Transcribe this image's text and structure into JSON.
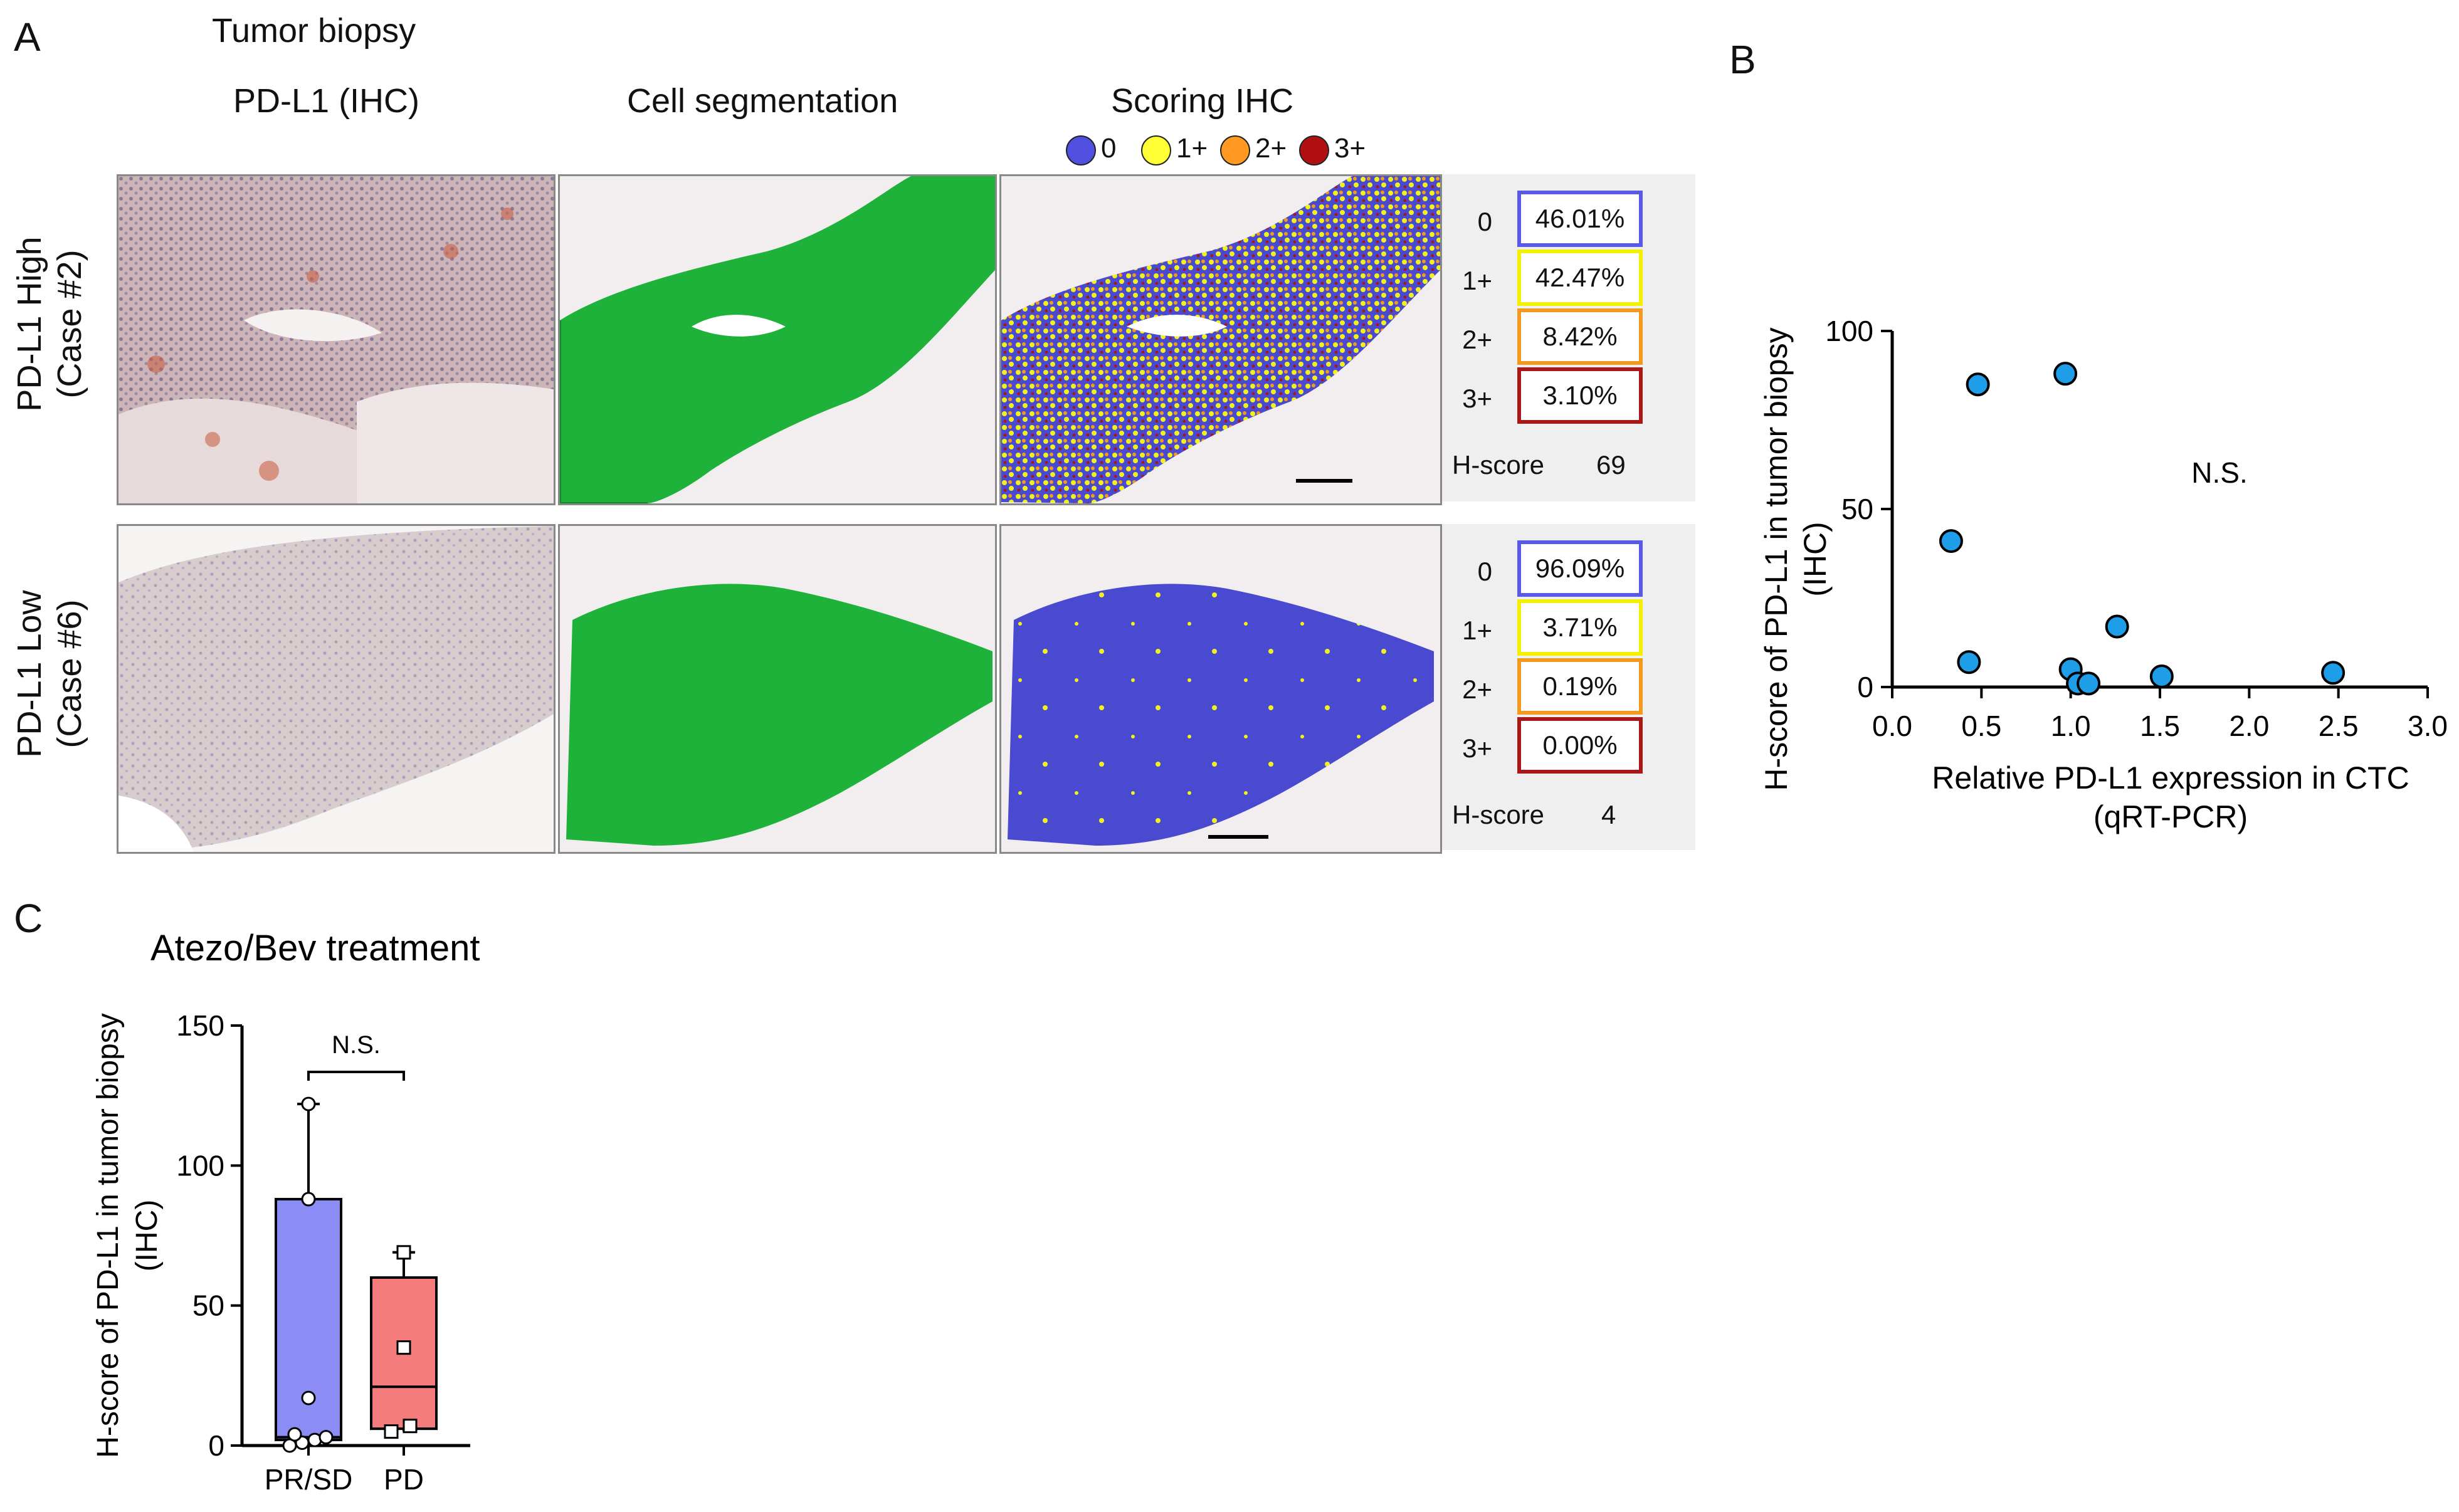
{
  "panels": {
    "a": "A",
    "b": "B",
    "c": "C"
  },
  "panel_a": {
    "title": "Tumor biopsy",
    "col_headers": [
      "PD-L1 (IHC)",
      "Cell segmentation",
      "Scoring IHC"
    ],
    "legend": [
      {
        "label": "0",
        "color": "#5050e0"
      },
      {
        "label": "1+",
        "color": "#ffff33"
      },
      {
        "label": "2+",
        "color": "#ff9922"
      },
      {
        "label": "3+",
        "color": "#b01010"
      }
    ],
    "rows": [
      {
        "label_line1": "PD-L1 High",
        "label_line2": "(Case #2)",
        "scores": [
          {
            "label": "0",
            "value": "46.01%",
            "border": "#5a5ae6"
          },
          {
            "label": "1+",
            "value": "42.47%",
            "border": "#f2f200"
          },
          {
            "label": "2+",
            "value": "8.42%",
            "border": "#f39a1e"
          },
          {
            "label": "3+",
            "value": "3.10%",
            "border": "#a81818"
          }
        ],
        "hscore_label": "H-score",
        "hscore_value": "69"
      },
      {
        "label_line1": "PD-L1 Low",
        "label_line2": "(Case #6)",
        "scores": [
          {
            "label": "0",
            "value": "96.09%",
            "border": "#5a5ae6"
          },
          {
            "label": "1+",
            "value": "3.71%",
            "border": "#f2f200"
          },
          {
            "label": "2+",
            "value": "0.19%",
            "border": "#f39a1e"
          },
          {
            "label": "3+",
            "value": "0.00%",
            "border": "#a81818"
          }
        ],
        "hscore_label": "H-score",
        "hscore_value": "4"
      }
    ]
  },
  "chart_data": [
    {
      "type": "scatter",
      "xlabel_line1": "Relative PD-L1 expression in CTC",
      "xlabel_line2": "(qRT-PCR)",
      "ylabel_line1": "H-score of PD-L1 in tumor biopsy",
      "ylabel_line2": "(IHC)",
      "xlim": [
        0,
        3.0
      ],
      "ylim": [
        0,
        100
      ],
      "x_ticks": [
        "0.0",
        "0.5",
        "1.0",
        "1.5",
        "2.0",
        "2.5",
        "3.0"
      ],
      "y_ticks": [
        "0",
        "50",
        "100"
      ],
      "annotation": "N.S.",
      "marker_color": "#1e9ee8",
      "points": [
        {
          "x": 0.33,
          "y": 41
        },
        {
          "x": 0.43,
          "y": 7
        },
        {
          "x": 0.48,
          "y": 85
        },
        {
          "x": 0.97,
          "y": 88
        },
        {
          "x": 1.0,
          "y": 5
        },
        {
          "x": 1.04,
          "y": 1
        },
        {
          "x": 1.1,
          "y": 1
        },
        {
          "x": 1.26,
          "y": 17
        },
        {
          "x": 1.51,
          "y": 3
        },
        {
          "x": 2.47,
          "y": 4
        }
      ]
    },
    {
      "type": "box",
      "title": "Atezo/Bev treatment",
      "ylabel_line1": "H-score of PD-L1 in tumor biopsy",
      "ylabel_line2": "(IHC)",
      "ylim": [
        0,
        150
      ],
      "y_ticks": [
        "0",
        "50",
        "100",
        "150"
      ],
      "annotation": "N.S.",
      "groups": [
        {
          "name": "PR/SD",
          "color": "#8c8cf5",
          "marker": "circle",
          "min": 0,
          "q1": 2,
          "median": 3,
          "q3": 88,
          "max": 122,
          "points": [
            0,
            1,
            2,
            3,
            4,
            17,
            88,
            122
          ]
        },
        {
          "name": "PD",
          "color": "#f47c7c",
          "marker": "square",
          "min": 5,
          "q1": 6,
          "median": 21,
          "q3": 60,
          "max": 69,
          "points": [
            5,
            7,
            35,
            69
          ]
        }
      ]
    }
  ]
}
